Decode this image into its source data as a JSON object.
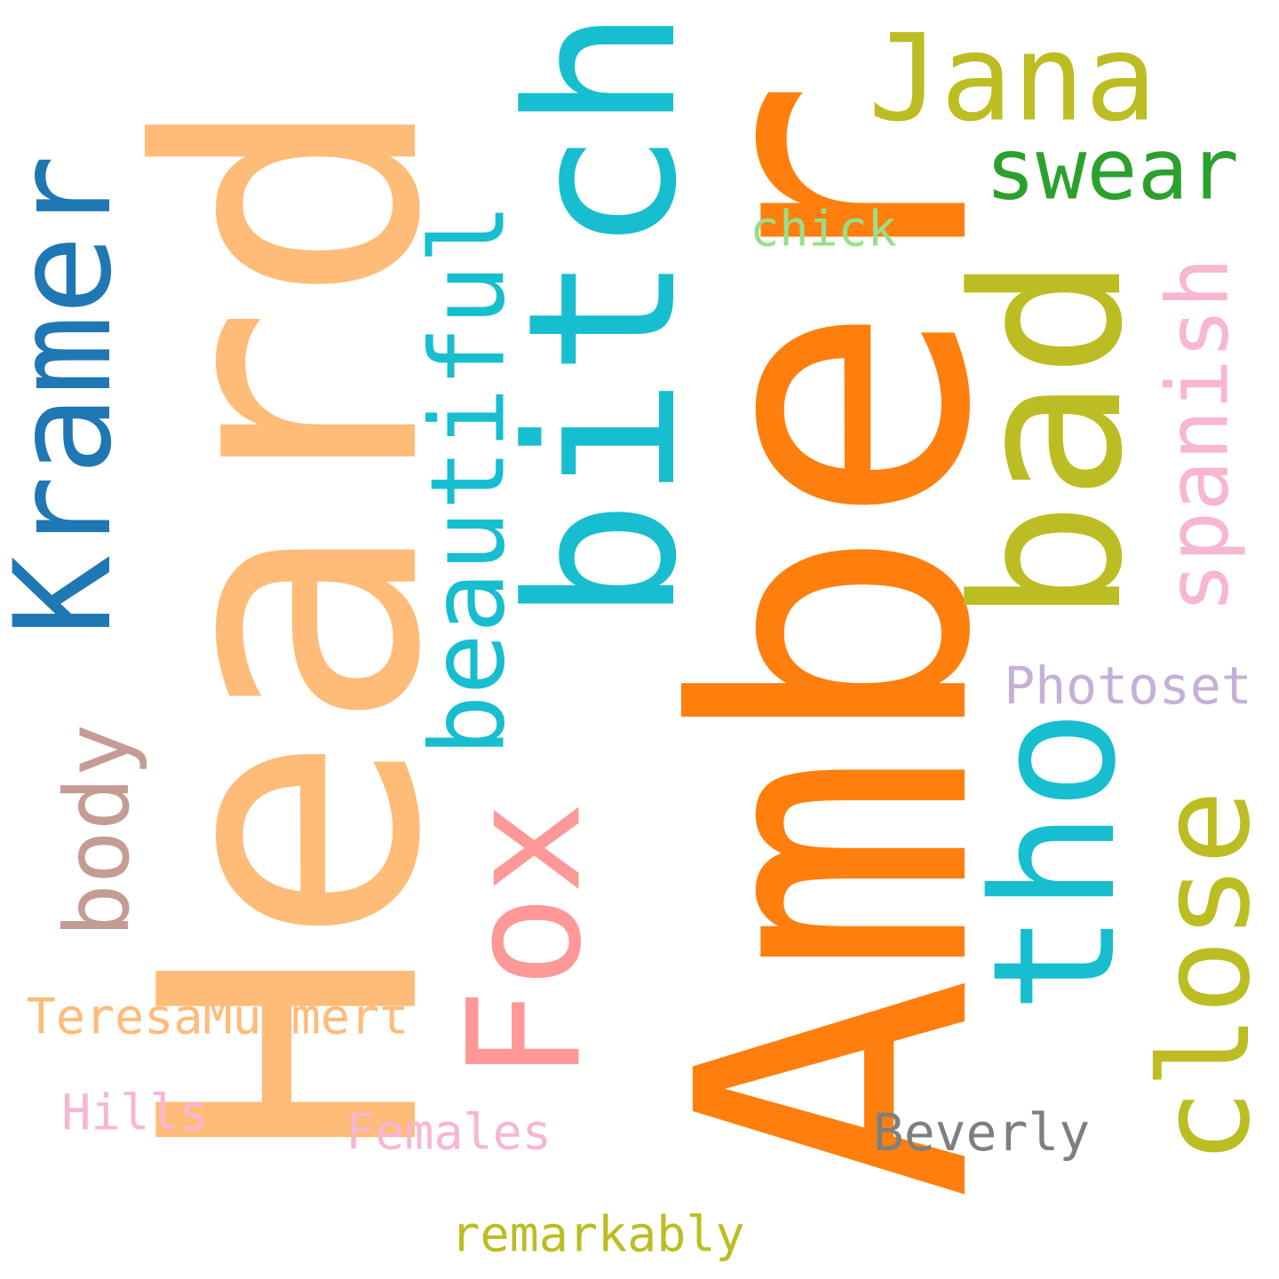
{
  "words": {
    "amber": {
      "text": "Amber",
      "color": "#ff7f0e"
    },
    "heard": {
      "text": "Heard",
      "color": "#ffbb78"
    },
    "bitch": {
      "text": "bitch",
      "color": "#17becf"
    },
    "bad": {
      "text": "bad",
      "color": "#bcbd22"
    },
    "tho": {
      "text": "tho",
      "color": "#17becf"
    },
    "fox": {
      "text": "Fox",
      "color": "#ff9896"
    },
    "kramer": {
      "text": "Kramer",
      "color": "#1f77b4"
    },
    "jana": {
      "text": "Jana",
      "color": "#bcbd22"
    },
    "close": {
      "text": "close",
      "color": "#bcbd22"
    },
    "beautiful": {
      "text": "beautiful",
      "color": "#17becf"
    },
    "swear": {
      "text": "swear",
      "color": "#2ca02c"
    },
    "spanish": {
      "text": "spanish",
      "color": "#f7b6d2"
    },
    "body": {
      "text": "body",
      "color": "#c49c94"
    },
    "photoset": {
      "text": "Photoset",
      "color": "#c5b0d5"
    },
    "chick": {
      "text": "chick",
      "color": "#98df8a"
    },
    "teresa": {
      "text": "TeresaMummert",
      "color": "#ffbb78"
    },
    "hills": {
      "text": "Hills",
      "color": "#f7b6d2"
    },
    "females": {
      "text": "Females",
      "color": "#f7b6d2"
    },
    "beverly": {
      "text": "Beverly",
      "color": "#7f7f7f"
    },
    "remarkably": {
      "text": "remarkably",
      "color": "#bcbd22"
    }
  }
}
